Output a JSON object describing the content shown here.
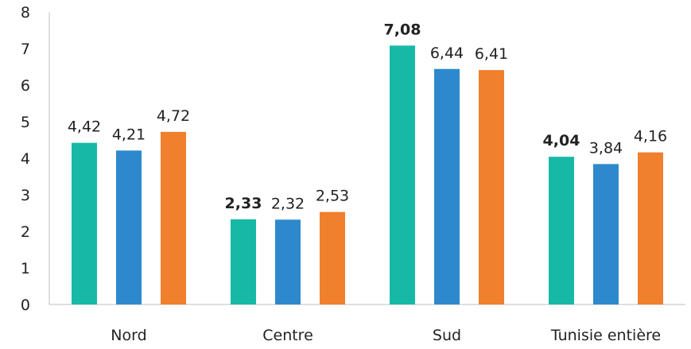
{
  "chart_data": {
    "type": "bar",
    "categories": [
      "Nord",
      "Centre",
      "Sud",
      "Tunisie entière"
    ],
    "series": [
      {
        "color": "#17b9a6",
        "values": [
          4.42,
          2.33,
          7.08,
          4.04
        ],
        "labels": [
          "4,42",
          "2,33",
          "7,08",
          "4,04"
        ]
      },
      {
        "color": "#2e89cc",
        "values": [
          4.21,
          2.32,
          6.44,
          3.84
        ],
        "labels": [
          "4,21",
          "2,32",
          "6,44",
          "3,84"
        ]
      },
      {
        "color": "#f07f2e",
        "values": [
          4.72,
          2.53,
          6.41,
          4.16
        ],
        "labels": [
          "4,72",
          "2,53",
          "6,41",
          "4,16"
        ]
      }
    ],
    "bold_labels": [
      "2,33",
      "7,08",
      "4,04"
    ],
    "yticks": [
      "0",
      "1",
      "2",
      "3",
      "4",
      "5",
      "6",
      "7",
      "8"
    ],
    "ylim": [
      0,
      8
    ],
    "grid": false,
    "legend": "none"
  }
}
